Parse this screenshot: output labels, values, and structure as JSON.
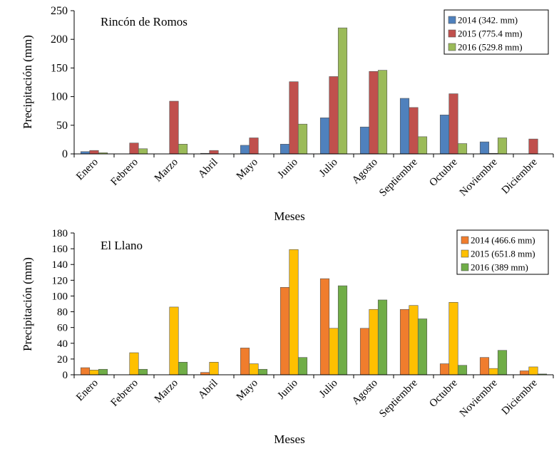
{
  "chart_data": [
    {
      "type": "bar",
      "title": "Rincón de Romos",
      "xlabel": "Meses",
      "ylabel": "Precipitación (mm)",
      "ylim": [
        0,
        250
      ],
      "yticks": [
        "0",
        "50",
        "100",
        "150",
        "200",
        "250"
      ],
      "categories": [
        "Enero",
        "Febrero",
        "Marzo",
        "Abril",
        "Mayo",
        "Junio",
        "Julio",
        "Agosto",
        "Septiembre",
        "Octubre",
        "Noviembre",
        "Diciembre"
      ],
      "series": [
        {
          "name": "2014 (342. mm)",
          "color": "#4f81bd",
          "values": [
            4,
            0,
            0,
            1,
            15,
            17,
            63,
            47,
            97,
            68,
            21,
            0
          ]
        },
        {
          "name": "2015 (775.4 mm)",
          "color": "#c0504d",
          "values": [
            6,
            19,
            92,
            6,
            28,
            126,
            135,
            144,
            81,
            105,
            1,
            26
          ]
        },
        {
          "name": "2016 (529.8 mm)",
          "color": "#9bbb59",
          "values": [
            2,
            9,
            17,
            0,
            0,
            52,
            220,
            146,
            30,
            18,
            28,
            0
          ]
        }
      ]
    },
    {
      "type": "bar",
      "title": "El Llano",
      "xlabel": "Meses",
      "ylabel": "Precipitación  (mm)",
      "ylim": [
        0,
        180
      ],
      "yticks": [
        "0",
        "20",
        "40",
        "60",
        "80",
        "100",
        "120",
        "140",
        "160",
        "180"
      ],
      "categories": [
        "Enero",
        "Febrero",
        "Marzo",
        "Abril",
        "Mayo",
        "Junio",
        "Julio",
        "Agosto",
        "Septiembre",
        "Octubre",
        "Noviembre",
        "Diciembre"
      ],
      "series": [
        {
          "name": "2014 (466.6 mm)",
          "color": "#f07d2d",
          "values": [
            9,
            0,
            0,
            3,
            34,
            111,
            122,
            59,
            83,
            14,
            22,
            5
          ]
        },
        {
          "name": "2015 (651.8 mm)",
          "color": "#ffc000",
          "values": [
            6,
            28,
            86,
            16,
            14,
            159,
            59,
            83,
            88,
            92,
            8,
            10
          ]
        },
        {
          "name": "2016 (389 mm)",
          "color": "#70ad47",
          "values": [
            7,
            7,
            16,
            0,
            7,
            22,
            113,
            95,
            71,
            12,
            31,
            1
          ]
        }
      ]
    }
  ]
}
